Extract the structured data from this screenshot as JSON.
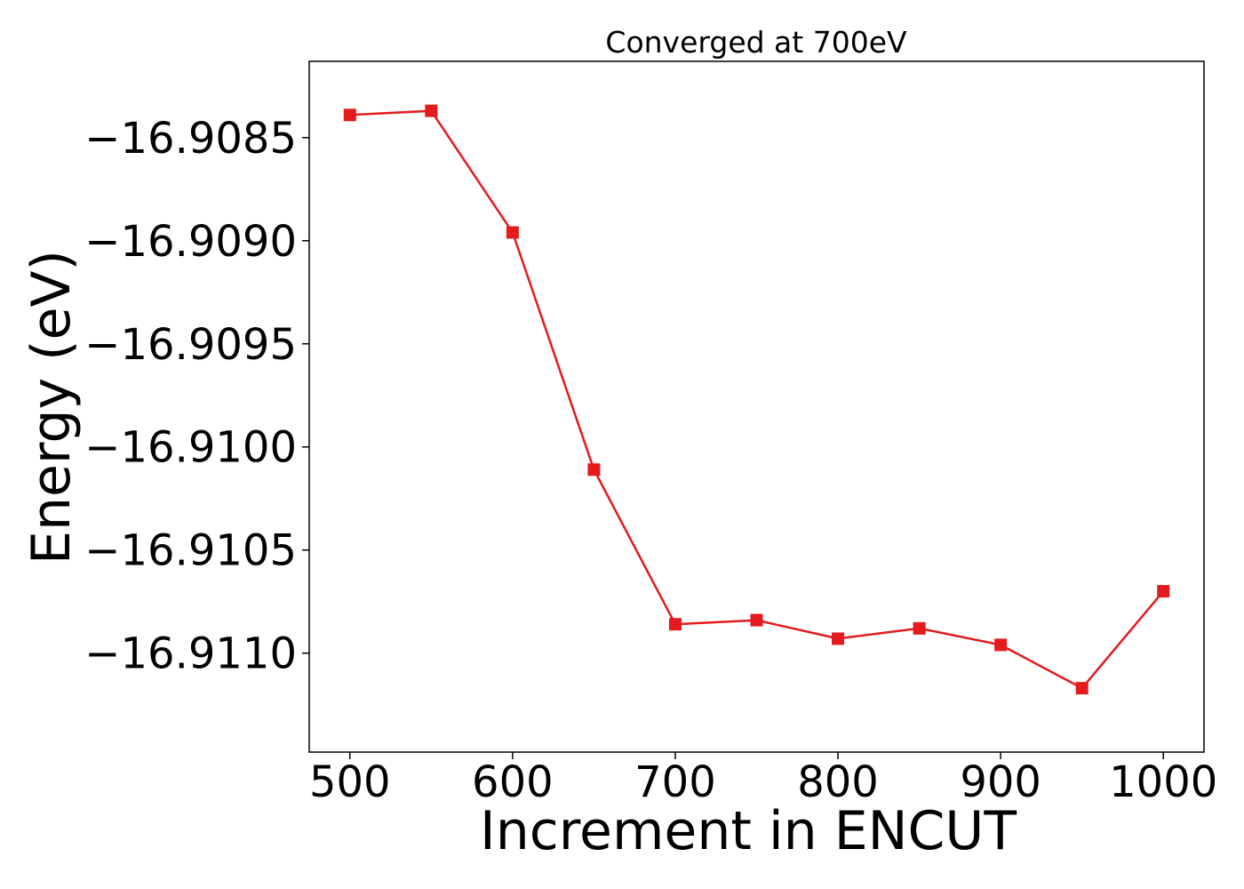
{
  "chart_data": {
    "type": "line",
    "title": "Converged at 700eV",
    "xlabel": "Increment in ENCUT",
    "ylabel": "Energy (eV)",
    "x": [
      500,
      550,
      600,
      650,
      700,
      750,
      800,
      850,
      900,
      950,
      1000
    ],
    "series": [
      {
        "values": [
          -16.90839,
          -16.90837,
          -16.90896,
          -16.91011,
          -16.91086,
          -16.91084,
          -16.91093,
          -16.91088,
          -16.91096,
          -16.91117,
          -16.9107
        ]
      }
    ],
    "xlim": [
      475,
      1025
    ],
    "ylim": [
      -16.91148,
      -16.90813
    ],
    "xticks": [
      500,
      600,
      700,
      800,
      900,
      1000
    ],
    "xtick_labels": [
      "500",
      "600",
      "700",
      "800",
      "900",
      "1000"
    ],
    "yticks": [
      -16.9085,
      -16.909,
      -16.9095,
      -16.91,
      -16.9105,
      -16.911
    ],
    "ytick_labels": [
      "−16.9085",
      "−16.9090",
      "−16.9095",
      "−16.9100",
      "−16.9105",
      "−16.9110"
    ],
    "marker": "square",
    "grid": false,
    "colors": {
      "series": "#e41a1c",
      "axes": "#000000"
    }
  }
}
